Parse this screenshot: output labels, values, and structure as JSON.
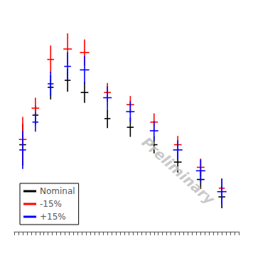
{
  "chart_data": {
    "type": "errorbar",
    "xlim": [
      -1.5,
      25.0
    ],
    "ylim": [
      0.5,
      13.0
    ],
    "xticks": [
      -1.5,
      -1,
      -0.5,
      0,
      0.5,
      1,
      1.5,
      2,
      2.5,
      3,
      3.5,
      4,
      4.5,
      5,
      5.5,
      6,
      6.5,
      7,
      7.5,
      8,
      8.5,
      9,
      9.5,
      10,
      10.5,
      11,
      11.5,
      12,
      12.5,
      13,
      13.5,
      14,
      14.5,
      15,
      15.5,
      16,
      16.5,
      17,
      17.5,
      18,
      18.5,
      19,
      19.5,
      20,
      20.5,
      21,
      21.5,
      22,
      22.5,
      23,
      23.5,
      24,
      24.5,
      25
    ],
    "tick_labels": false,
    "grid": false,
    "legend": "lower left",
    "annotations": [
      "Preliminary"
    ],
    "series": [
      {
        "name": "Nominal",
        "color": "black",
        "x": [
          1.0,
          2.8,
          4.8,
          6.8,
          9.5,
          12.2,
          15.0,
          17.8,
          20.5,
          23.0,
          -0.5
        ],
        "y": [
          7.2,
          8.8,
          9.2,
          8.5,
          7.0,
          6.5,
          5.5,
          4.5,
          3.5,
          2.5,
          5.5
        ],
        "xerr": [
          0.35,
          0.35,
          0.35,
          0.45,
          0.35,
          0.4,
          0.4,
          0.45,
          0.45,
          0.4,
          0.4
        ],
        "yerr": [
          0.55,
          0.7,
          0.65,
          0.6,
          0.55,
          0.55,
          0.5,
          0.6,
          0.55,
          0.65,
          1.2
        ]
      },
      {
        "name": "-15%",
        "color": "red",
        "x": [
          1.0,
          2.8,
          4.8,
          6.8,
          9.5,
          12.2,
          15.0,
          17.8,
          20.5,
          23.0,
          -0.5
        ],
        "y": [
          7.6,
          10.4,
          11.0,
          10.8,
          8.5,
          7.8,
          6.8,
          5.5,
          4.2,
          3.0,
          5.8
        ],
        "xerr": [
          0.45,
          0.4,
          0.5,
          0.55,
          0.4,
          0.45,
          0.45,
          0.45,
          0.45,
          0.35,
          0.45
        ],
        "yerr": [
          0.6,
          0.8,
          0.9,
          0.75,
          0.55,
          0.5,
          0.5,
          0.5,
          0.5,
          0.55,
          1.3
        ]
      },
      {
        "name": "+15%",
        "color": "blue",
        "x": [
          1.0,
          2.8,
          4.8,
          6.8,
          9.5,
          12.2,
          15.0,
          17.8,
          20.5,
          23.0,
          -0.5
        ],
        "y": [
          6.8,
          9.0,
          10.0,
          9.8,
          8.2,
          7.4,
          6.3,
          5.2,
          4.0,
          2.8,
          5.2
        ],
        "xerr": [
          0.35,
          0.35,
          0.4,
          0.55,
          0.5,
          0.5,
          0.5,
          0.55,
          0.55,
          0.55,
          0.4
        ],
        "yerr": [
          0.55,
          0.7,
          0.8,
          0.8,
          0.65,
          0.6,
          0.55,
          0.55,
          0.65,
          0.75,
          1.1
        ]
      }
    ]
  }
}
